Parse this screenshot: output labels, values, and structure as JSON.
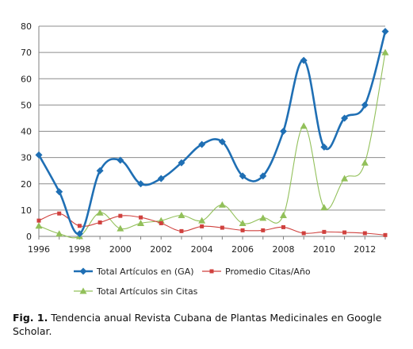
{
  "chart_data": {
    "type": "line",
    "x": [
      1996,
      1997,
      1998,
      1999,
      2000,
      2001,
      2002,
      2003,
      2004,
      2005,
      2006,
      2007,
      2008,
      2009,
      2010,
      2011,
      2012,
      2013
    ],
    "xticks": [
      1996,
      1998,
      2000,
      2002,
      2004,
      2006,
      2008,
      2010,
      2012
    ],
    "yticks": [
      0,
      10,
      20,
      30,
      40,
      50,
      60,
      70,
      80
    ],
    "ylim": [
      0,
      80
    ],
    "xlim": [
      1996,
      2013
    ],
    "grid": "horizontal",
    "legend_position": "bottom",
    "series": [
      {
        "name": "Total Artículos en (GA)",
        "color": "#1f6fb4",
        "marker": "diamond",
        "values": [
          31,
          17,
          1,
          25,
          29,
          20,
          22,
          28,
          35,
          36,
          23,
          23,
          40,
          67,
          34,
          45,
          50,
          78
        ]
      },
      {
        "name": "Promedio Citas/Año",
        "color": "#d0413e",
        "marker": "square",
        "values": [
          6,
          8.7,
          4,
          5.3,
          7.8,
          7.2,
          5,
          2,
          3.8,
          3.3,
          2.3,
          2.3,
          3.5,
          1.2,
          1.7,
          1.5,
          1.2,
          0.5
        ]
      },
      {
        "name": "Total Artículos sin Citas",
        "color": "#92c05a",
        "marker": "triangle",
        "values": [
          4,
          1,
          0,
          9,
          3,
          5,
          6,
          8,
          6,
          12,
          5,
          7,
          8,
          42,
          11,
          22,
          28,
          70
        ]
      }
    ]
  },
  "caption": {
    "label": "Fig. 1.",
    "text": " Tendencia anual Revista Cubana de Plantas Medicinales en Google Scholar."
  }
}
